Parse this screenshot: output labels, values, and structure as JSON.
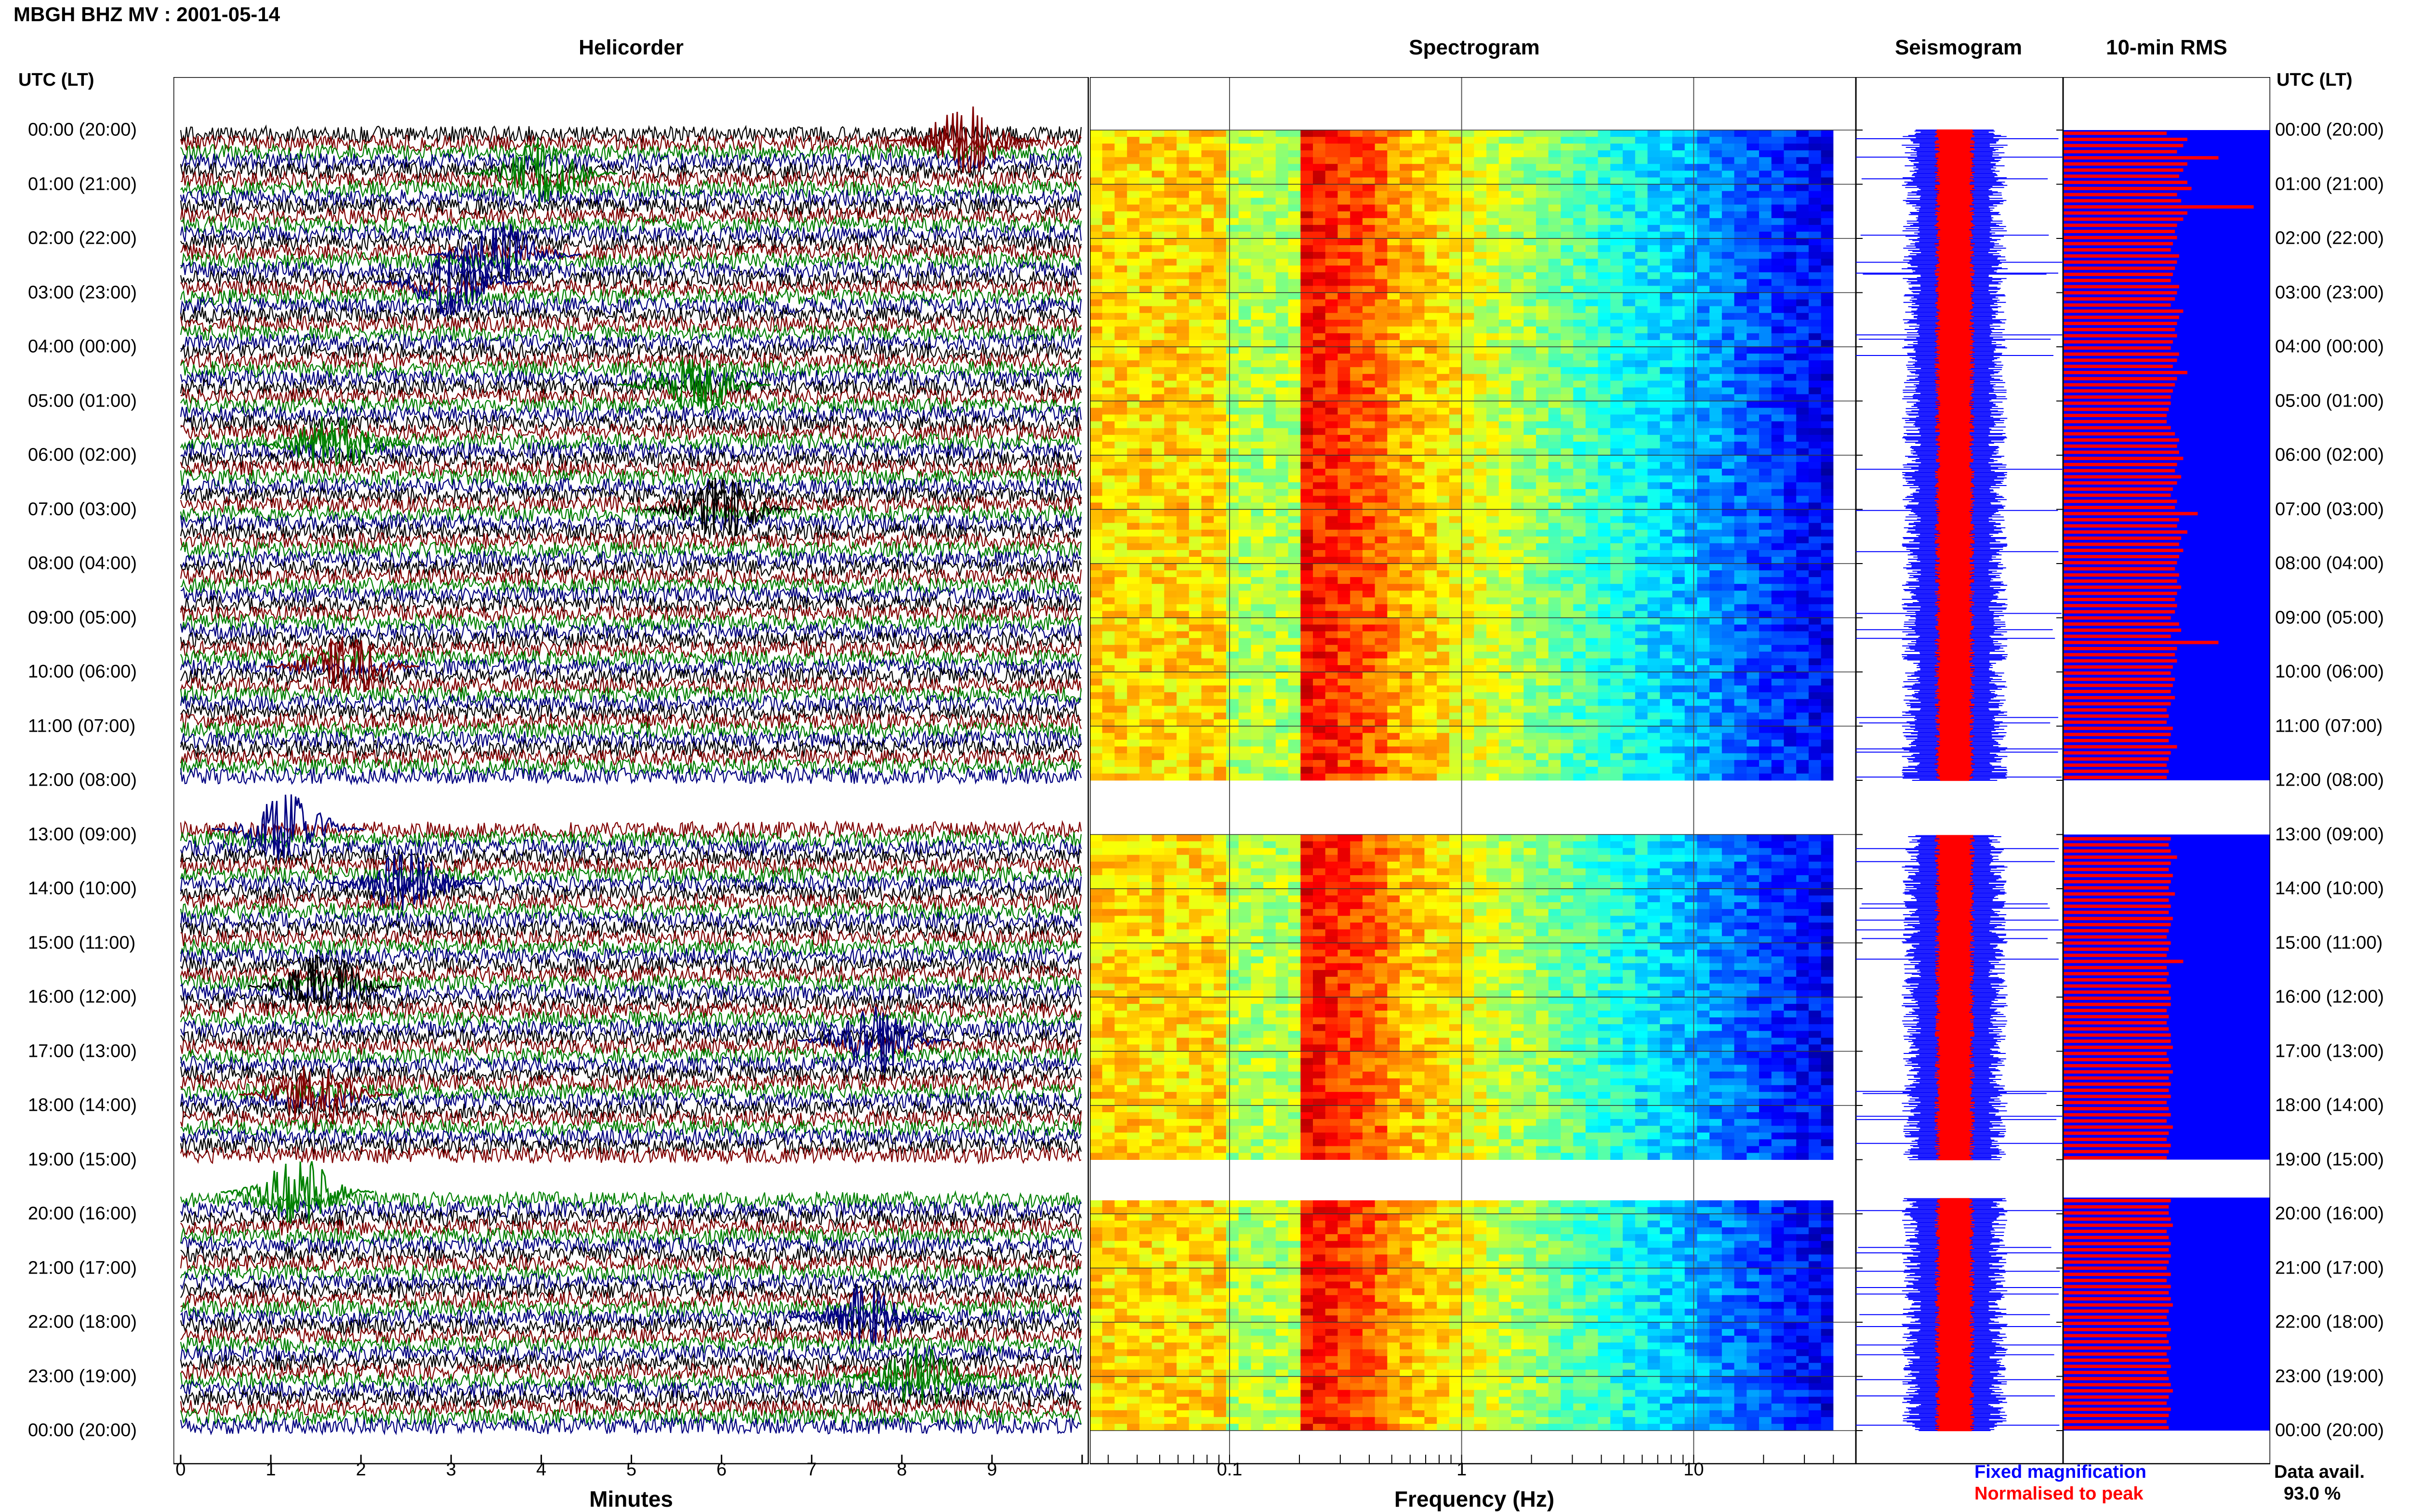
{
  "figure": {
    "title": "MBGH BHZ MV : 2001-05-14",
    "panels": [
      "Helicorder",
      "Spectrogram",
      "Seismogram",
      "10-min RMS"
    ],
    "row_header": "UTC (LT)",
    "legend": {
      "fixed": "Fixed magnification",
      "normalised": "Normalised to peak",
      "avail_label": "Data avail.",
      "avail_value": "93.0 %",
      "fixed_color": "#0000ff",
      "normalised_color": "#ff0000"
    },
    "colors": {
      "helicorder_traces": [
        "#000000",
        "#800000",
        "#008000",
        "#000080"
      ],
      "rms_background": "#0000ff",
      "rms_bars": "#ff0000",
      "spectrogram_colormap": "jet"
    }
  },
  "chart_data": [
    {
      "type": "line",
      "title": "Helicorder",
      "xlabel": "Minutes",
      "xlim": [
        0,
        10
      ],
      "x_ticks": [
        "0",
        "1",
        "2",
        "3",
        "4",
        "5",
        "6",
        "7",
        "8",
        "9"
      ],
      "y_tick_labels": [
        "00:00 (20:00)",
        "01:00 (21:00)",
        "02:00 (22:00)",
        "03:00 (23:00)",
        "04:00 (00:00)",
        "05:00 (01:00)",
        "06:00 (02:00)",
        "07:00 (03:00)",
        "08:00 (04:00)",
        "09:00 (05:00)",
        "10:00 (06:00)",
        "11:00 (07:00)",
        "12:00 (08:00)",
        "13:00 (09:00)",
        "14:00 (10:00)",
        "15:00 (11:00)",
        "16:00 (12:00)",
        "17:00 (13:00)",
        "18:00 (14:00)",
        "19:00 (15:00)",
        "20:00 (16:00)",
        "21:00 (17:00)",
        "22:00 (18:00)",
        "23:00 (19:00)",
        "00:00 (20:00)"
      ],
      "gaps_utc_hours": [
        [
          12.0,
          12.9
        ],
        [
          19.0,
          19.7
        ]
      ],
      "events": [
        {
          "hour": 0.2,
          "minute": 8.7,
          "color": "#800000"
        },
        {
          "hour": 0.8,
          "minute": 4.0,
          "color": "#008000"
        },
        {
          "hour": 2.3,
          "minute": 3.6,
          "color": "#000080"
        },
        {
          "hour": 2.8,
          "minute": 3.0,
          "color": "#000080"
        },
        {
          "hour": 4.7,
          "minute": 5.7,
          "color": "#008000"
        },
        {
          "hour": 5.8,
          "minute": 1.7,
          "color": "#008000"
        },
        {
          "hour": 7.0,
          "minute": 6.0,
          "color": "#000000"
        },
        {
          "hour": 9.9,
          "minute": 1.8,
          "color": "#800000"
        },
        {
          "hour": 12.9,
          "minute": 1.2,
          "color": "#000080"
        },
        {
          "hour": 13.9,
          "minute": 2.5,
          "color": "#000080"
        },
        {
          "hour": 15.8,
          "minute": 1.6,
          "color": "#000000"
        },
        {
          "hour": 16.8,
          "minute": 7.7,
          "color": "#000080"
        },
        {
          "hour": 17.8,
          "minute": 1.5,
          "color": "#800000"
        },
        {
          "hour": 19.6,
          "minute": 1.3,
          "color": "#008000"
        },
        {
          "hour": 21.9,
          "minute": 7.6,
          "color": "#000080"
        },
        {
          "hour": 23.0,
          "minute": 8.2,
          "color": "#008000"
        }
      ]
    },
    {
      "type": "heatmap",
      "title": "Spectrogram",
      "xlabel": "Frequency (Hz)",
      "xscale": "log",
      "xlim": [
        0.025,
        50
      ],
      "x_ticks": [
        "0.1",
        "1",
        "10"
      ],
      "colormap": "jet",
      "high_energy_band_hz": [
        0.2,
        0.5
      ],
      "gaps_utc_hours": [
        [
          12.0,
          13.0
        ],
        [
          19.0,
          19.7
        ]
      ]
    },
    {
      "type": "line",
      "title": "Seismogram",
      "series": [
        {
          "name": "Fixed magnification",
          "color": "#0000ff"
        },
        {
          "name": "Normalised to peak",
          "color": "#ff0000"
        }
      ],
      "gaps_utc_hours": [
        [
          12.0,
          13.0
        ],
        [
          19.0,
          19.7
        ]
      ]
    },
    {
      "type": "bar",
      "title": "10-min RMS",
      "orientation": "horizontal",
      "units": "relative",
      "values": [
        0.5,
        0.6,
        0.58,
        0.55,
        0.75,
        0.6,
        0.58,
        0.56,
        0.6,
        0.62,
        0.55,
        0.57,
        0.92,
        0.6,
        0.58,
        0.55,
        0.54,
        0.55,
        0.53,
        0.52,
        0.56,
        0.55,
        0.54,
        0.53,
        0.52,
        0.56,
        0.55,
        0.54,
        0.52,
        0.58,
        0.56,
        0.55,
        0.54,
        0.55,
        0.53,
        0.52,
        0.56,
        0.55,
        0.53,
        0.6,
        0.55,
        0.54,
        0.53,
        0.52,
        0.52,
        0.51,
        0.5,
        0.5,
        0.52,
        0.54,
        0.56,
        0.55,
        0.56,
        0.58,
        0.55,
        0.54,
        0.57,
        0.55,
        0.53,
        0.52,
        0.55,
        0.54,
        0.65,
        0.56,
        0.55,
        0.6,
        0.57,
        0.56,
        0.58,
        0.56,
        0.55,
        0.54,
        0.56,
        0.55,
        0.57,
        0.55,
        0.54,
        0.55,
        0.54,
        0.52,
        0.56,
        0.57,
        0.52,
        0.75,
        0.55,
        0.54,
        0.55,
        0.53,
        0.52,
        0.54,
        0.53,
        0.52,
        0.54,
        0.52,
        0.5,
        0.51,
        0.5,
        0.53,
        0.52,
        0.51,
        0.55,
        0.52,
        0.51,
        0.5,
        0.51,
        0.5,
        0.55,
        0.53,
        0.52,
        0.54,
        0.52,
        0.51,
        0.51,
        0.5,
        0.53,
        0.52,
        0.51,
        0.52,
        0.55,
        0.52,
        0.51,
        0.53,
        0.52,
        0.51,
        0.54,
        0.51,
        0.52,
        0.51,
        0.53,
        0.52,
        0.51,
        0.5,
        0.52,
        0.51,
        0.5,
        0.58,
        0.5,
        0.51,
        0.5,
        0.52,
        0.51,
        0.52,
        0.52,
        0.5,
        0.51,
        0.5,
        0.51,
        0.52,
        0.52,
        0.53,
        0.5,
        0.51,
        0.52,
        0.53,
        0.51,
        0.52,
        0.51,
        0.52,
        0.5,
        0.51,
        0.52,
        0.5,
        0.53,
        0.51,
        0.5,
        0.52,
        0.51,
        0.5,
        0.52,
        0.51,
        0.52,
        0.53,
        0.51,
        0.5,
        0.52,
        0.51,
        0.51,
        0.52,
        0.53,
        0.5,
        0.51,
        0.52,
        0.51,
        0.52,
        0.51,
        0.5,
        0.52,
        0.5,
        0.52,
        0.51,
        0.52,
        0.53,
        0.51,
        0.5,
        0.51,
        0.52,
        0.5,
        0.51,
        0.52,
        0.5,
        0.51,
        0.52,
        0.5,
        0.51,
        0.52,
        0.53,
        0.51,
        0.5,
        0.52,
        0.51,
        0.5,
        0.51
      ],
      "gaps_utc_hours": [
        [
          12.0,
          13.0
        ],
        [
          19.0,
          19.7
        ]
      ]
    }
  ]
}
